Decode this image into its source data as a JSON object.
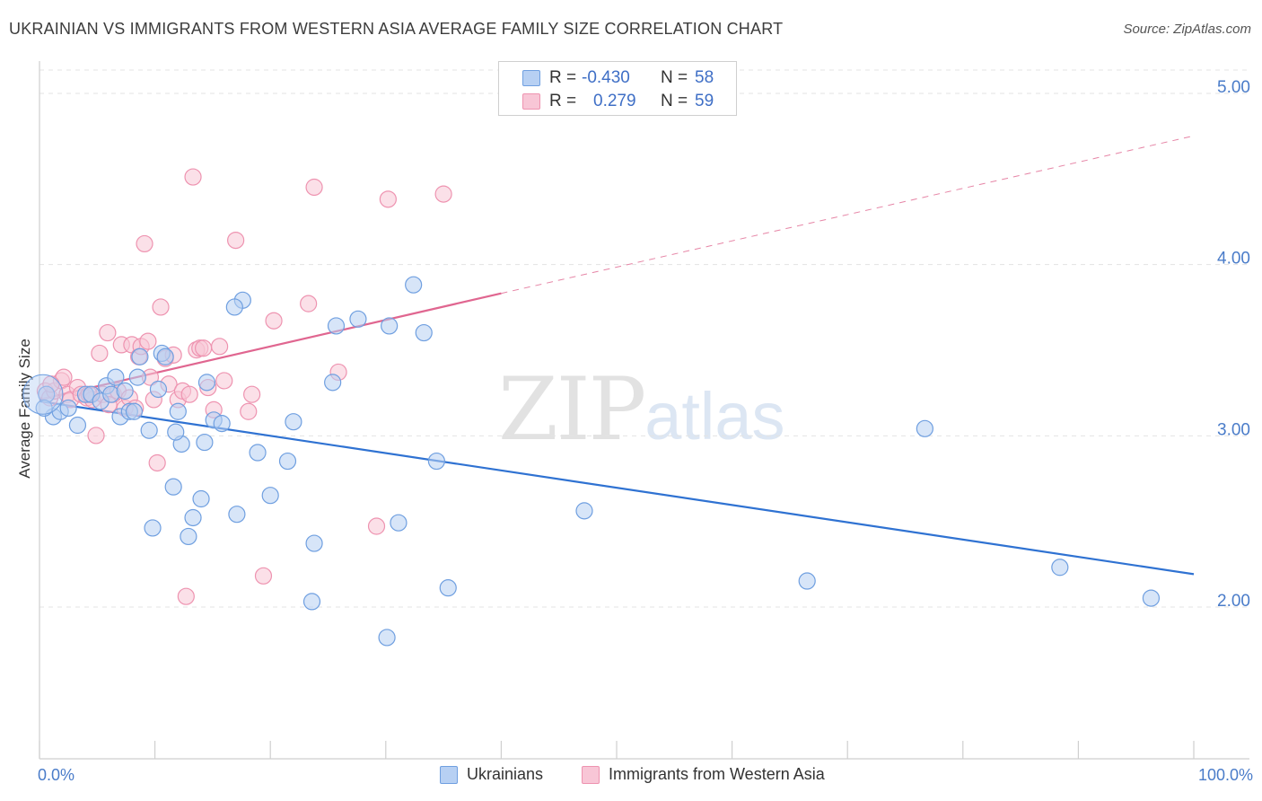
{
  "title": "UKRAINIAN VS IMMIGRANTS FROM WESTERN ASIA AVERAGE FAMILY SIZE CORRELATION CHART",
  "source": "Source: ZipAtlas.com",
  "watermark": {
    "zip": "ZIP",
    "atlas": "atlas"
  },
  "legend": {
    "rows": [
      {
        "r_label": "R =",
        "r_value": "-0.430",
        "n_label": "N =",
        "n_value": "58"
      },
      {
        "r_label": "R =",
        "r_value": "0.279",
        "n_label": "N =",
        "n_value": "59"
      }
    ]
  },
  "colors": {
    "blue_fill": "#b7d0f3",
    "blue_stroke": "#6f9fe0",
    "blue_line": "#2f72d2",
    "pink_fill": "#f8c6d6",
    "pink_stroke": "#ee93b0",
    "pink_line": "#e06690",
    "grid": "#e3e3e3",
    "tick_text": "#4a7cc9"
  },
  "chart_data": {
    "type": "scatter",
    "title": "UKRAINIAN VS IMMIGRANTS FROM WESTERN ASIA AVERAGE FAMILY SIZE CORRELATION CHART",
    "xlabel": "",
    "ylabel": "Average Family Size",
    "xlim": [
      0,
      100
    ],
    "ylim": [
      1.0,
      5.1
    ],
    "xticks": [
      {
        "value": 0,
        "label": "0.0%"
      },
      {
        "value": 100,
        "label": "100.0%"
      }
    ],
    "yticks": [
      {
        "value": 2.0,
        "label": "2.00"
      },
      {
        "value": 3.0,
        "label": "3.00"
      },
      {
        "value": 4.0,
        "label": "4.00"
      },
      {
        "value": 5.0,
        "label": "5.00"
      }
    ],
    "grid": "horizontal dashed",
    "legend_position": "top-center",
    "series": [
      {
        "name": "Ukrainians",
        "color": "#b7d0f3",
        "r": -0.43,
        "n": 58,
        "trend": {
          "x": [
            0,
            100
          ],
          "y": [
            3.16,
            2.15
          ],
          "dashed_extension": false
        },
        "points": [
          {
            "x": 0.6,
            "y": 3.2
          },
          {
            "x": 1.2,
            "y": 3.07
          },
          {
            "x": 1.8,
            "y": 3.1
          },
          {
            "x": 2.5,
            "y": 3.12
          },
          {
            "x": 3.3,
            "y": 3.02
          },
          {
            "x": 4.0,
            "y": 3.2
          },
          {
            "x": 4.5,
            "y": 3.2
          },
          {
            "x": 5.3,
            "y": 3.16
          },
          {
            "x": 5.8,
            "y": 3.25
          },
          {
            "x": 6.2,
            "y": 3.2
          },
          {
            "x": 7.0,
            "y": 3.07
          },
          {
            "x": 7.4,
            "y": 3.22
          },
          {
            "x": 7.8,
            "y": 3.1
          },
          {
            "x": 8.2,
            "y": 3.1
          },
          {
            "x": 8.5,
            "y": 3.3
          },
          {
            "x": 8.7,
            "y": 3.42
          },
          {
            "x": 9.5,
            "y": 2.99
          },
          {
            "x": 9.8,
            "y": 2.42
          },
          {
            "x": 10.3,
            "y": 3.23
          },
          {
            "x": 10.6,
            "y": 3.44
          },
          {
            "x": 10.9,
            "y": 3.42
          },
          {
            "x": 11.6,
            "y": 2.66
          },
          {
            "x": 12.0,
            "y": 3.1
          },
          {
            "x": 12.3,
            "y": 2.91
          },
          {
            "x": 12.9,
            "y": 2.37
          },
          {
            "x": 13.3,
            "y": 2.48
          },
          {
            "x": 14.0,
            "y": 2.59
          },
          {
            "x": 14.5,
            "y": 3.27
          },
          {
            "x": 15.1,
            "y": 3.05
          },
          {
            "x": 15.8,
            "y": 3.03
          },
          {
            "x": 17.1,
            "y": 2.5
          },
          {
            "x": 17.6,
            "y": 3.75
          },
          {
            "x": 18.9,
            "y": 2.86
          },
          {
            "x": 20.0,
            "y": 2.61
          },
          {
            "x": 21.5,
            "y": 2.81
          },
          {
            "x": 22.0,
            "y": 3.04
          },
          {
            "x": 23.6,
            "y": 1.99
          },
          {
            "x": 23.8,
            "y": 2.33
          },
          {
            "x": 25.4,
            "y": 3.27
          },
          {
            "x": 25.7,
            "y": 3.6
          },
          {
            "x": 27.6,
            "y": 3.64
          },
          {
            "x": 30.1,
            "y": 1.78
          },
          {
            "x": 30.3,
            "y": 3.6
          },
          {
            "x": 31.1,
            "y": 2.45
          },
          {
            "x": 32.4,
            "y": 3.84
          },
          {
            "x": 33.3,
            "y": 3.56
          },
          {
            "x": 34.4,
            "y": 2.81
          },
          {
            "x": 35.4,
            "y": 2.07
          },
          {
            "x": 47.2,
            "y": 2.52
          },
          {
            "x": 66.5,
            "y": 2.11
          },
          {
            "x": 76.7,
            "y": 3.0
          },
          {
            "x": 88.4,
            "y": 2.19
          },
          {
            "x": 96.3,
            "y": 2.01
          },
          {
            "x": 0.4,
            "y": 3.12
          },
          {
            "x": 14.3,
            "y": 2.92
          },
          {
            "x": 16.9,
            "y": 3.71
          },
          {
            "x": 11.8,
            "y": 2.98
          },
          {
            "x": 6.6,
            "y": 3.3
          }
        ]
      },
      {
        "name": "Immigrants from Western Asia",
        "color": "#f8c6d6",
        "r": 0.279,
        "n": 59,
        "trend": {
          "x": [
            0,
            40
          ],
          "y": [
            3.17,
            3.79
          ],
          "dashed_extension": {
            "x": [
              40,
              100
            ],
            "y": [
              3.79,
              4.71
            ]
          }
        },
        "points": [
          {
            "x": 0.5,
            "y": 3.22
          },
          {
            "x": 0.9,
            "y": 3.18
          },
          {
            "x": 1.3,
            "y": 3.22
          },
          {
            "x": 1.9,
            "y": 3.28
          },
          {
            "x": 2.4,
            "y": 3.2
          },
          {
            "x": 2.7,
            "y": 3.17
          },
          {
            "x": 3.3,
            "y": 3.24
          },
          {
            "x": 3.6,
            "y": 3.2
          },
          {
            "x": 4.1,
            "y": 3.18
          },
          {
            "x": 4.6,
            "y": 3.17
          },
          {
            "x": 4.9,
            "y": 2.96
          },
          {
            "x": 5.2,
            "y": 3.44
          },
          {
            "x": 5.5,
            "y": 3.2
          },
          {
            "x": 5.9,
            "y": 3.56
          },
          {
            "x": 6.4,
            "y": 3.2
          },
          {
            "x": 6.8,
            "y": 3.22
          },
          {
            "x": 7.1,
            "y": 3.49
          },
          {
            "x": 7.4,
            "y": 3.12
          },
          {
            "x": 7.8,
            "y": 3.18
          },
          {
            "x": 8.0,
            "y": 3.49
          },
          {
            "x": 8.3,
            "y": 3.12
          },
          {
            "x": 8.6,
            "y": 3.42
          },
          {
            "x": 8.8,
            "y": 3.48
          },
          {
            "x": 9.1,
            "y": 4.08
          },
          {
            "x": 9.4,
            "y": 3.51
          },
          {
            "x": 9.9,
            "y": 3.17
          },
          {
            "x": 10.2,
            "y": 2.8
          },
          {
            "x": 10.5,
            "y": 3.71
          },
          {
            "x": 10.9,
            "y": 3.41
          },
          {
            "x": 11.2,
            "y": 3.26
          },
          {
            "x": 11.6,
            "y": 3.43
          },
          {
            "x": 12.0,
            "y": 3.17
          },
          {
            "x": 12.4,
            "y": 3.22
          },
          {
            "x": 12.7,
            "y": 2.02
          },
          {
            "x": 13.0,
            "y": 3.2
          },
          {
            "x": 13.3,
            "y": 4.47
          },
          {
            "x": 13.6,
            "y": 3.46
          },
          {
            "x": 13.9,
            "y": 3.47
          },
          {
            "x": 14.2,
            "y": 3.47
          },
          {
            "x": 14.6,
            "y": 3.24
          },
          {
            "x": 15.1,
            "y": 3.11
          },
          {
            "x": 15.6,
            "y": 3.48
          },
          {
            "x": 16.0,
            "y": 3.28
          },
          {
            "x": 17.0,
            "y": 4.1
          },
          {
            "x": 18.1,
            "y": 3.1
          },
          {
            "x": 18.4,
            "y": 3.2
          },
          {
            "x": 19.4,
            "y": 2.14
          },
          {
            "x": 20.3,
            "y": 3.63
          },
          {
            "x": 23.3,
            "y": 3.73
          },
          {
            "x": 23.8,
            "y": 4.41
          },
          {
            "x": 25.9,
            "y": 3.33
          },
          {
            "x": 29.2,
            "y": 2.43
          },
          {
            "x": 30.2,
            "y": 4.34
          },
          {
            "x": 35.0,
            "y": 4.37
          },
          {
            "x": 2.1,
            "y": 3.3
          },
          {
            "x": 6.0,
            "y": 3.14
          },
          {
            "x": 9.6,
            "y": 3.3
          },
          {
            "x": 4.3,
            "y": 3.2
          },
          {
            "x": 1.0,
            "y": 3.26
          }
        ]
      }
    ]
  }
}
